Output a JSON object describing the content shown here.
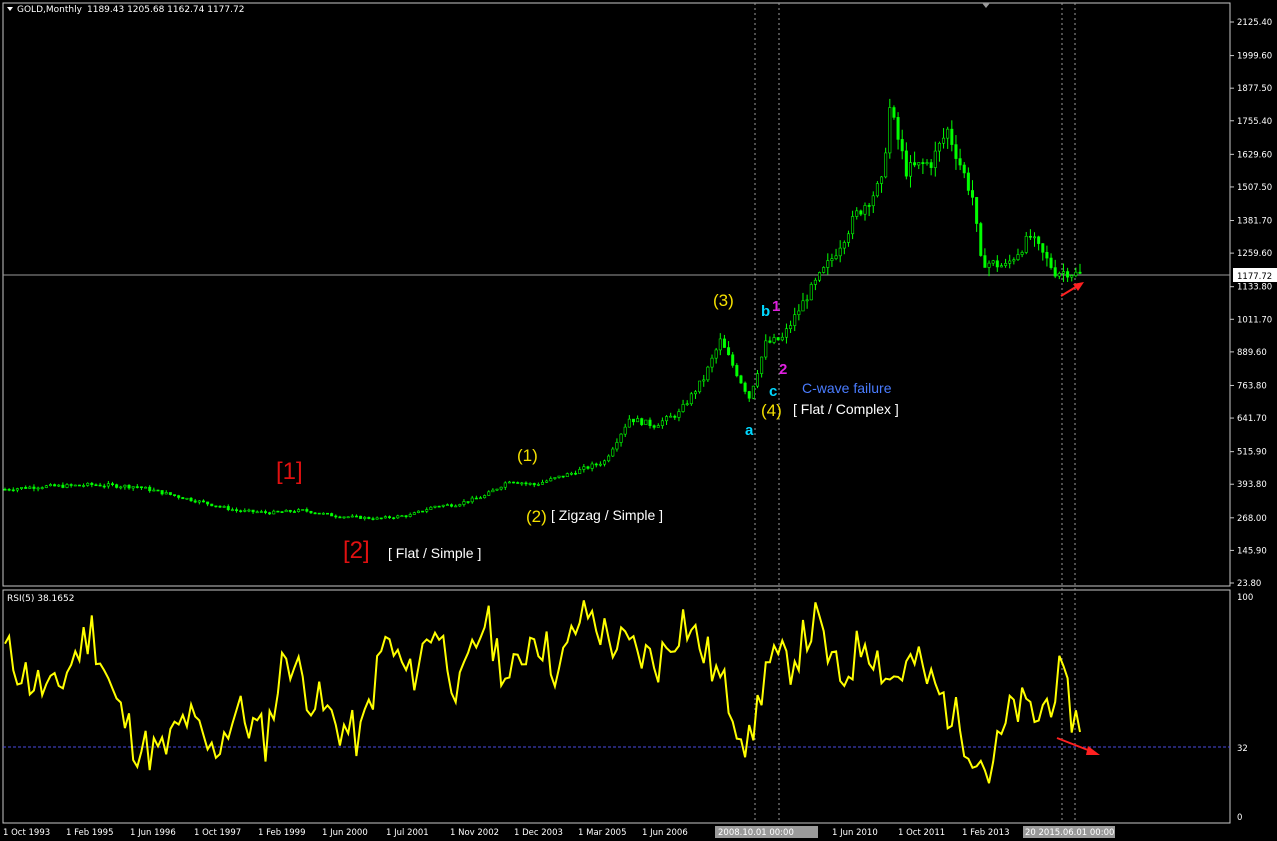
{
  "header": {
    "symbol_label": "GOLD,Monthly",
    "ohlc": "1189.43 1205.68 1162.74 1177.72"
  },
  "price_axis_labels": [
    "2125.40",
    "1999.60",
    "1877.50",
    "1755.40",
    "1629.60",
    "1507.50",
    "1381.70",
    "1259.60",
    "1133.80",
    "1011.70",
    "889.60",
    "763.80",
    "641.70",
    "515.90",
    "393.80",
    "268.00",
    "145.90",
    "23.80"
  ],
  "current_price_label": "1177.72",
  "rsi": {
    "label": "RSI(5) 38.1652",
    "axis_labels": [
      "100",
      "32",
      "0"
    ]
  },
  "time_axis_labels": [
    "1 Oct 1993",
    "1 Feb 1995",
    "1 Jun 1996",
    "1 Oct 1997",
    "1 Feb 1999",
    "1 Jun 2000",
    "1 Jul 2001",
    "1 Nov 2002",
    "1 Dec 2003",
    "1 Mar 2005",
    "1 Jun 2006",
    "1 Jun 2010",
    "1 Oct 2011",
    "1 Feb 2013"
  ],
  "crosshair_labels": [
    "2008.10.01 00:00",
    "20 2015.06.01 00:00"
  ],
  "annotations": {
    "r1": "[1]",
    "r2": "[2]",
    "flat_simple": "[ Flat / Simple ]",
    "w1": "(1)",
    "w2": "(2)",
    "zigzag_simple": "[ Zigzag / Simple ]",
    "w3": "(3)",
    "w4": "(4)",
    "flat_complex": "[ Flat / Complex ]",
    "a": "a",
    "b": "b",
    "c": "c",
    "m1": "1",
    "m2": "2",
    "cwave": "C-wave failure"
  },
  "colors": {
    "background": "#000000",
    "candle": "#00ff00",
    "rsi_line": "#ffff00",
    "wave_primary": "#e01010",
    "wave_intermediate": "#f4e000",
    "wave_minor": "#00d8ff",
    "wave_minute": "#e020e0",
    "arrow": "#ff2020",
    "note_blue": "#4a7cff"
  },
  "chart_data": [
    {
      "type": "candlestick",
      "title": "GOLD,Monthly",
      "ylim": [
        23.8,
        2151.0
      ],
      "x": [
        "1993-10",
        "1994-06",
        "1995-02",
        "1995-07",
        "1996-06",
        "1997-06",
        "1998-06",
        "1999-02",
        "1999-10",
        "2000-06",
        "2001-04",
        "2001-12",
        "2002-06",
        "2002-11",
        "2003-06",
        "2003-12",
        "2004-06",
        "2005-03",
        "2005-11",
        "2006-05",
        "2006-11",
        "2007-05",
        "2007-11",
        "2008-03",
        "2008-10",
        "2009-02",
        "2009-06",
        "2009-12",
        "2010-06",
        "2010-12",
        "2011-06",
        "2011-08",
        "2011-12",
        "2012-06",
        "2012-10",
        "2013-04",
        "2013-06",
        "2013-12",
        "2014-06",
        "2014-12",
        "2015-03",
        "2015-06"
      ],
      "close": [
        375,
        385,
        388,
        392,
        385,
        340,
        295,
        287,
        296,
        275,
        265,
        278,
        312,
        318,
        350,
        408,
        392,
        435,
        480,
        640,
        615,
        660,
        790,
        930,
        720,
        920,
        940,
        1100,
        1240,
        1405,
        1520,
        1800,
        1570,
        1600,
        1720,
        1470,
        1230,
        1210,
        1320,
        1190,
        1190,
        1177.72
      ],
      "last_price": 1177.72,
      "series": [
        {
          "name": "GOLD,Monthly"
        }
      ]
    },
    {
      "type": "line",
      "title": "RSI(5) 38.1652",
      "ylim": [
        0,
        100
      ],
      "reference_line": 32,
      "x": [
        "1993-10",
        "1994-04",
        "1994-10",
        "1995-02",
        "1995-07",
        "1996-01",
        "1996-06",
        "1996-12",
        "1997-06",
        "1997-12",
        "1998-06",
        "1999-01",
        "1999-06",
        "1999-12",
        "2000-06",
        "2000-12",
        "2001-06",
        "2001-12",
        "2002-06",
        "2002-12",
        "2003-06",
        "2003-12",
        "2004-06",
        "2004-12",
        "2005-06",
        "2005-12",
        "2006-06",
        "2006-12",
        "2007-06",
        "2007-12",
        "2008-06",
        "2008-10",
        "2009-02",
        "2009-08",
        "2010-02",
        "2010-08",
        "2011-02",
        "2011-08",
        "2012-02",
        "2012-08",
        "2013-02",
        "2013-08",
        "2014-02",
        "2014-08",
        "2015-01",
        "2015-06"
      ],
      "values": [
        75,
        62,
        55,
        70,
        85,
        50,
        32,
        28,
        45,
        28,
        48,
        35,
        75,
        55,
        42,
        35,
        80,
        62,
        88,
        55,
        90,
        60,
        85,
        65,
        95,
        80,
        75,
        70,
        90,
        72,
        50,
        31,
        68,
        70,
        88,
        60,
        82,
        62,
        70,
        55,
        38,
        20,
        50,
        45,
        62,
        38.17
      ]
    }
  ]
}
